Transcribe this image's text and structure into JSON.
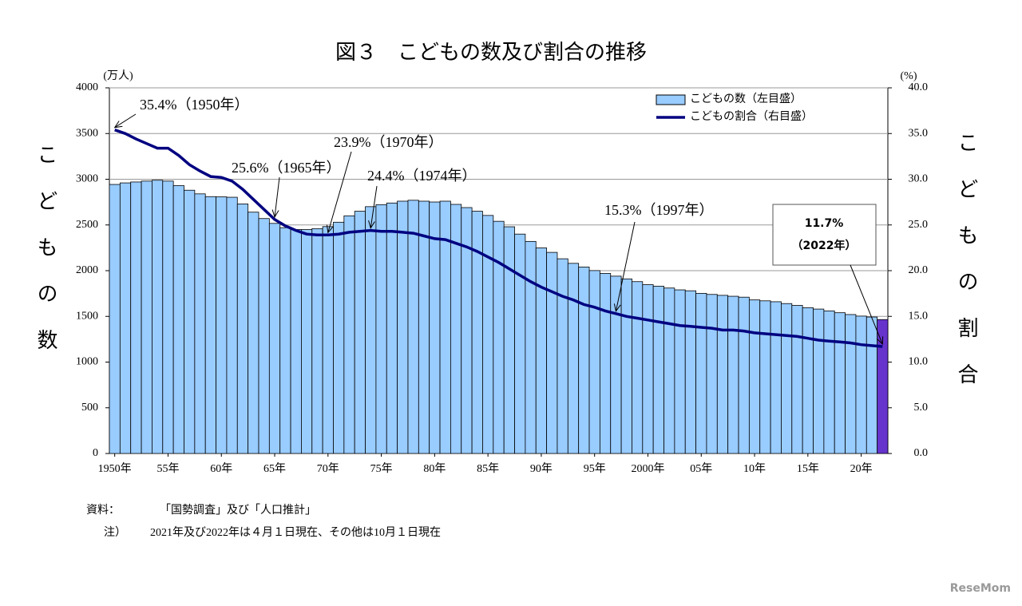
{
  "chart_data": {
    "type": "bar_line",
    "title": "図３　こどもの数及び割合の推移",
    "y_unit": "(万人)",
    "y2_unit": "(%)",
    "y_label": "こどもの数",
    "y2_label": "こどもの割合",
    "categories": [
      "1950年",
      null,
      null,
      null,
      null,
      "55年",
      null,
      null,
      null,
      null,
      "60年",
      null,
      null,
      null,
      null,
      "65年",
      null,
      null,
      null,
      null,
      "70年",
      null,
      null,
      null,
      null,
      "75年",
      null,
      null,
      null,
      null,
      "80年",
      null,
      null,
      null,
      null,
      "85年",
      null,
      null,
      null,
      null,
      "90年",
      null,
      null,
      null,
      null,
      "95年",
      null,
      null,
      null,
      null,
      "2000年",
      null,
      null,
      null,
      null,
      "05年",
      null,
      null,
      null,
      null,
      "10年",
      null,
      null,
      null,
      null,
      "15年",
      null,
      null,
      null,
      null,
      "20年",
      null,
      null
    ],
    "series": [
      {
        "name": "こどもの数（左目盛）",
        "color": "#99ccff",
        "highlight_color": "#6633cc",
        "values": [
          2943,
          2960,
          2970,
          2980,
          2989,
          2980,
          2930,
          2880,
          2840,
          2810,
          2807,
          2803,
          2730,
          2640,
          2570,
          2517,
          2470,
          2450,
          2450,
          2460,
          2482,
          2530,
          2600,
          2650,
          2700,
          2722,
          2740,
          2760,
          2770,
          2760,
          2751,
          2760,
          2725,
          2690,
          2650,
          2604,
          2540,
          2480,
          2400,
          2320,
          2249,
          2200,
          2130,
          2080,
          2040,
          2001,
          1970,
          1940,
          1910,
          1880,
          1847,
          1830,
          1810,
          1790,
          1780,
          1752,
          1740,
          1730,
          1720,
          1710,
          1680,
          1670,
          1660,
          1640,
          1620,
          1595,
          1580,
          1560,
          1540,
          1520,
          1503,
          1493,
          1465
        ]
      },
      {
        "name": "こどもの割合（右目盛）",
        "color": "#000080",
        "axis": "y2",
        "values": [
          35.4,
          35.0,
          34.4,
          33.9,
          33.4,
          33.4,
          32.6,
          31.6,
          30.9,
          30.3,
          30.2,
          29.8,
          28.9,
          27.8,
          26.7,
          25.6,
          24.9,
          24.4,
          24.0,
          23.9,
          23.9,
          24.0,
          24.2,
          24.3,
          24.4,
          24.3,
          24.3,
          24.2,
          24.1,
          23.8,
          23.5,
          23.4,
          23.0,
          22.6,
          22.1,
          21.5,
          20.9,
          20.2,
          19.5,
          18.8,
          18.2,
          17.7,
          17.2,
          16.8,
          16.3,
          16.0,
          15.6,
          15.3,
          15.0,
          14.8,
          14.6,
          14.4,
          14.2,
          14.0,
          13.9,
          13.8,
          13.7,
          13.5,
          13.5,
          13.4,
          13.2,
          13.1,
          13.0,
          12.9,
          12.8,
          12.6,
          12.4,
          12.3,
          12.2,
          12.1,
          11.9,
          11.8,
          11.7
        ]
      }
    ],
    "ylim": [
      0,
      4000
    ],
    "yticks": [
      0,
      500,
      1000,
      1500,
      2000,
      2500,
      3000,
      3500,
      4000
    ],
    "y2lim": [
      0,
      40
    ],
    "y2ticks": [
      {
        "value": 0,
        "label": "0.0"
      },
      {
        "value": 5,
        "label": "5.0"
      },
      {
        "value": 10,
        "label": "10.0"
      },
      {
        "value": 15,
        "label": "15.0"
      },
      {
        "value": 20,
        "label": "20.0"
      },
      {
        "value": 25,
        "label": "25.0"
      },
      {
        "value": 30,
        "label": "30.0"
      },
      {
        "value": 35,
        "label": "35.0"
      },
      {
        "value": 40,
        "label": "40.0"
      }
    ],
    "grid": true,
    "legend": "top-right",
    "annotations": [
      "35.4%（1950年）",
      "25.6%（1965年）",
      "23.9%（1970年）",
      "24.4%（1974年）",
      "15.3%（1997年）"
    ],
    "callout": [
      "11.7%",
      "（2022年）"
    ],
    "notes": [
      [
        "資料：",
        "「国勢調査」及び「人口推計」"
      ],
      [
        "注）",
        "2021年及び2022年は４月１日現在、その他は10月１日現在"
      ]
    ],
    "watermark": "ReseMom"
  }
}
